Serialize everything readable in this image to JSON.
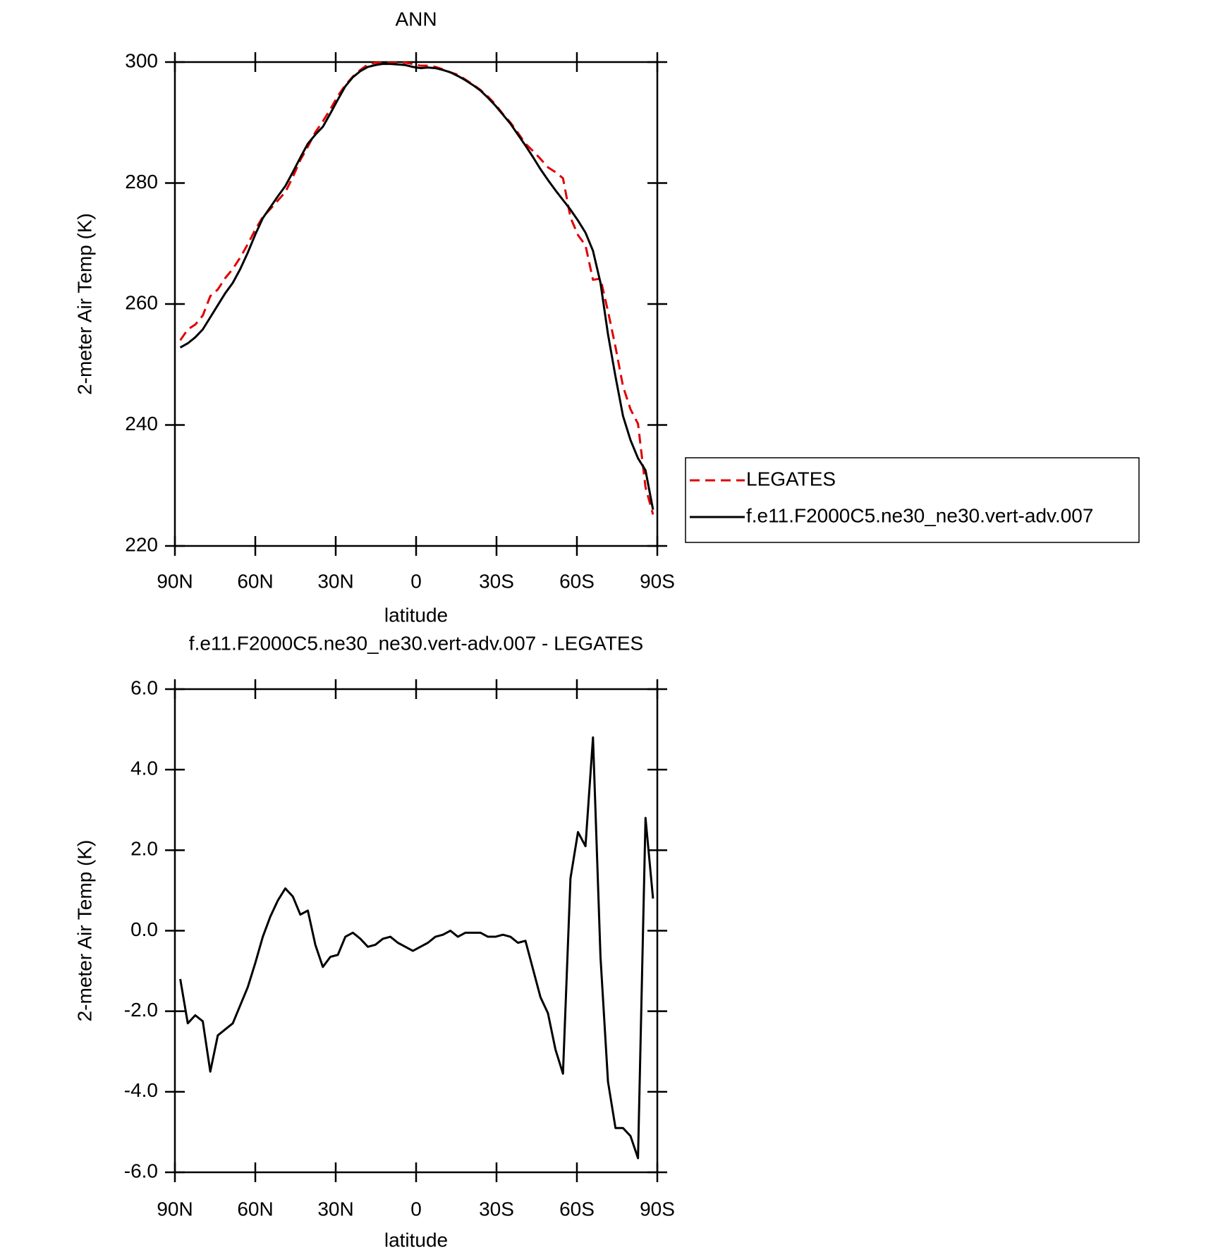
{
  "chart_data": [
    {
      "type": "line",
      "title": "ANN",
      "x_label": "latitude",
      "y_label": "2-meter Air Temp (K)",
      "x": [
        88.0,
        85.2,
        82.4,
        79.6,
        76.8,
        74.0,
        71.2,
        68.4,
        65.6,
        62.8,
        60.0,
        57.2,
        54.4,
        51.6,
        48.8,
        46.0,
        43.2,
        40.4,
        37.6,
        34.8,
        32.0,
        29.2,
        26.4,
        23.6,
        20.8,
        18.0,
        15.2,
        12.4,
        9.6,
        6.8,
        4.0,
        1.2,
        -1.6,
        -4.4,
        -7.2,
        -10.0,
        -12.8,
        -15.6,
        -18.4,
        -21.2,
        -24.0,
        -26.8,
        -29.6,
        -32.4,
        -35.2,
        -38.0,
        -40.8,
        -43.6,
        -46.4,
        -49.2,
        -52.0,
        -54.8,
        -57.6,
        -60.4,
        -63.2,
        -66.0,
        -68.8,
        -71.6,
        -74.4,
        -77.2,
        -80.0,
        -82.8,
        -85.6,
        -88.4
      ],
      "series": [
        {
          "name": "LEGATES",
          "color": "#e00000",
          "line_style": "dashed",
          "values": [
            254.0,
            255.8,
            256.6,
            258.1,
            261.3,
            262.4,
            264.3,
            265.8,
            267.7,
            269.9,
            272.3,
            274.4,
            275.7,
            277.1,
            278.5,
            281.0,
            283.8,
            286.0,
            288.4,
            290.2,
            292.2,
            294.4,
            296.2,
            297.6,
            298.7,
            299.6,
            299.9,
            299.9,
            299.9,
            299.9,
            299.9,
            299.7,
            299.4,
            299.4,
            299.2,
            298.8,
            298.3,
            297.9,
            297.1,
            296.3,
            295.4,
            294.3,
            293.0,
            291.4,
            290.0,
            288.3,
            286.5,
            285.3,
            284.0,
            282.6,
            281.8,
            280.8,
            274.3,
            271.4,
            269.7,
            264.0,
            264.2,
            258.8,
            252.9,
            246.4,
            242.6,
            240.2,
            229.7,
            225.2
          ]
        },
        {
          "name": "f.e11.F2000C5.ne30_ne30.vert-adv.007",
          "color": "#000000",
          "line_style": "solid",
          "values": [
            252.8,
            253.5,
            254.5,
            255.8,
            257.8,
            259.8,
            261.8,
            263.5,
            265.8,
            268.5,
            271.5,
            274.2,
            276.0,
            277.8,
            279.5,
            281.8,
            284.2,
            286.5,
            288.0,
            289.3,
            291.5,
            293.8,
            296.0,
            297.5,
            298.5,
            299.2,
            299.5,
            299.7,
            299.7,
            299.6,
            299.5,
            299.2,
            299.0,
            299.1,
            299.0,
            298.7,
            298.3,
            297.7,
            297.0,
            296.2,
            295.3,
            294.1,
            292.8,
            291.3,
            289.8,
            288.0,
            286.2,
            284.3,
            282.3,
            280.5,
            278.8,
            277.2,
            275.6,
            273.8,
            271.8,
            268.8,
            263.5,
            255.0,
            248.0,
            241.5,
            237.5,
            234.5,
            232.5,
            226.0
          ]
        }
      ],
      "xlim": [
        90,
        -90
      ],
      "xticks": [
        {
          "value": 90,
          "label": "90N"
        },
        {
          "value": 60,
          "label": "60N"
        },
        {
          "value": 30,
          "label": "30N"
        },
        0,
        {
          "value": -30,
          "label": "30S"
        },
        {
          "value": -60,
          "label": "60S"
        },
        {
          "value": -90,
          "label": "90S"
        }
      ],
      "ylim": [
        220,
        300
      ],
      "yticks": [
        220,
        240,
        260,
        280,
        300
      ],
      "legend": "right"
    },
    {
      "type": "line",
      "title": "f.e11.F2000C5.ne30_ne30.vert-adv.007 - LEGATES",
      "x_label": "latitude",
      "y_label": "2-meter Air Temp (K)",
      "x": [
        88.0,
        85.2,
        82.4,
        79.6,
        76.8,
        74.0,
        71.2,
        68.4,
        65.6,
        62.8,
        60.0,
        57.2,
        54.4,
        51.6,
        48.8,
        46.0,
        43.2,
        40.4,
        37.6,
        34.8,
        32.0,
        29.2,
        26.4,
        23.6,
        20.8,
        18.0,
        15.2,
        12.4,
        9.6,
        6.8,
        4.0,
        1.2,
        -1.6,
        -4.4,
        -7.2,
        -10.0,
        -12.8,
        -15.6,
        -18.4,
        -21.2,
        -24.0,
        -26.8,
        -29.6,
        -32.4,
        -35.2,
        -38.0,
        -40.8,
        -43.6,
        -46.4,
        -49.2,
        -52.0,
        -54.8,
        -57.6,
        -60.4,
        -63.2,
        -66.0,
        -68.8,
        -71.6,
        -74.4,
        -77.2,
        -80.0,
        -82.8,
        -85.6,
        -88.4
      ],
      "series": [
        {
          "color": "#000000",
          "line_style": "solid",
          "values": [
            -1.2,
            -2.3,
            -2.1,
            -2.25,
            -3.5,
            -2.6,
            -2.45,
            -2.3,
            -1.85,
            -1.4,
            -0.8,
            -0.15,
            0.35,
            0.75,
            1.05,
            0.85,
            0.4,
            0.5,
            -0.35,
            -0.9,
            -0.65,
            -0.6,
            -0.15,
            -0.05,
            -0.2,
            -0.4,
            -0.35,
            -0.2,
            -0.15,
            -0.3,
            -0.4,
            -0.5,
            -0.4,
            -0.3,
            -0.15,
            -0.1,
            0.0,
            -0.15,
            -0.05,
            -0.05,
            -0.05,
            -0.15,
            -0.15,
            -0.1,
            -0.15,
            -0.3,
            -0.25,
            -0.95,
            -1.65,
            -2.05,
            -2.95,
            -3.55,
            1.3,
            2.45,
            2.1,
            4.8,
            -0.65,
            -3.75,
            -4.9,
            -4.9,
            -5.1,
            -5.65,
            2.8,
            0.8
          ]
        }
      ],
      "xlim": [
        90,
        -90
      ],
      "xticks": [
        {
          "value": 90,
          "label": "90N"
        },
        {
          "value": 60,
          "label": "60N"
        },
        {
          "value": 30,
          "label": "30N"
        },
        0,
        {
          "value": -30,
          "label": "30S"
        },
        {
          "value": -60,
          "label": "60S"
        },
        {
          "value": -90,
          "label": "90S"
        }
      ],
      "ylim": [
        -6,
        6
      ],
      "yticks": [
        {
          "value": -6,
          "label": "-6.0"
        },
        {
          "value": -4,
          "label": "-4.0"
        },
        {
          "value": -2,
          "label": "-2.0"
        },
        {
          "value": 0,
          "label": "0.0"
        },
        {
          "value": 2,
          "label": "2.0"
        },
        {
          "value": 4,
          "label": "4.0"
        },
        {
          "value": 6,
          "label": "6.0"
        }
      ]
    }
  ]
}
